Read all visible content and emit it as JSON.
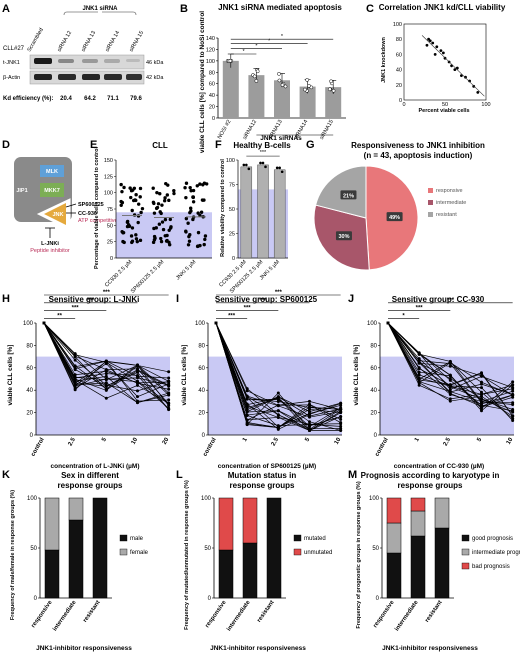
{
  "panel_letters": [
    "A",
    "B",
    "C",
    "D",
    "E",
    "F",
    "G",
    "H",
    "I",
    "J",
    "K",
    "L",
    "M"
  ],
  "A": {
    "group_label": "JNK1 siRNA",
    "cll_label": "CLL#27",
    "lanes": [
      "Scrambled",
      "siRNA 12",
      "siRNA 13",
      "siRNA 14",
      "siRNA 15"
    ],
    "bands": [
      "t-JNK1",
      "β-Actin"
    ],
    "sizes": [
      "46 kDa",
      "42 kDa"
    ],
    "kd_label": "Kd efficiency (%):",
    "kd_values": [
      "20.4",
      "64.2",
      "71.1",
      "79.6"
    ]
  },
  "B": {
    "title": "JNK1 siRNA mediated apoptosis",
    "ylabel": "viable CLL cells [%] compared to NoSi control",
    "xlabel": "JNK1 siRNAs",
    "sig": "*",
    "yticks": [
      "0",
      "20",
      "40",
      "60",
      "80",
      "100",
      "120",
      "140"
    ]
  },
  "C": {
    "title": "Correlation JNK1 kd/CLL viability",
    "xlabel": "Percent viable cells",
    "ylabel": "JNK1 knockdown",
    "xticks": [
      "0",
      "50",
      "100"
    ],
    "yticks": [
      "0",
      "20",
      "40",
      "60",
      "80",
      "100"
    ]
  },
  "D": {
    "nodes": [
      "MLK",
      "MKK7",
      "JNK",
      "JIP1"
    ],
    "inhibitors": [
      "SP600125",
      "CC-930"
    ],
    "atp_label": "ATP competitive inhibitors",
    "peptide": "L-JNKi",
    "peptide_label": "Peptide inhibitor"
  },
  "E": {
    "title": "CLL",
    "ylabel": "Percentage of viable cells compared to control",
    "yticks": [
      "0",
      "25",
      "50",
      "75",
      "100",
      "125",
      "150"
    ]
  },
  "F": {
    "title": "Healthy B-cells",
    "ylabel": "Relative viability compared to control",
    "sig": "***",
    "yticks": [
      "0",
      "25",
      "50",
      "75",
      "100"
    ]
  },
  "G": {
    "title_line1": "Responsiveness to JNK1 inhibition",
    "title_line2": "(n = 43, apoptosis induction)"
  },
  "H": {
    "title": "Sensitive group: L-JNKi",
    "xlabel": "concentration of L-JNKi (µM)"
  },
  "I": {
    "title": "Sensitive group: SP600125",
    "xlabel": "concentration of SP600125 (µM)"
  },
  "J": {
    "title": "Sensitive group: CC-930",
    "xlabel": "concentration of CC-930 (µM)"
  },
  "dose_common": {
    "ylabel": "viable CLL cells [%]",
    "yticks": [
      "0",
      "20",
      "40",
      "60",
      "80",
      "100"
    ]
  },
  "K": {
    "title_line1": "Sex in different",
    "title_line2": "response groups",
    "ylabel": "Frequency of male/female in response groups (%)"
  },
  "L": {
    "title_line1": "Mutation status in",
    "title_line2": "response groups",
    "ylabel": "Frequency of mutated/unmutated in response groups (%)"
  },
  "M": {
    "title_line1": "Prognosis according to karyotype in",
    "title_line2": "response groups",
    "ylabel": "Frequency of prognostic groups in response groups (%)"
  },
  "bottom_common": {
    "xlabel": "JNK1-inhibitor responsiveness",
    "yticks": [
      "0",
      "50",
      "100"
    ]
  },
  "chart_data": [
    {
      "panel": "B",
      "type": "bar",
      "categories": [
        "NOSI #2",
        "siRNA12",
        "siRNA13",
        "siRNA14",
        "siRNA15"
      ],
      "values": [
        100,
        75,
        66,
        55,
        54
      ],
      "title": "JNK1 siRNA mediated apoptosis",
      "xlabel": "JNK1 siRNAs",
      "ylabel": "viable CLL cells [%] compared to NoSi control",
      "ylim": [
        0,
        140
      ]
    },
    {
      "panel": "C",
      "type": "scatter",
      "x": [
        30,
        35,
        40,
        28,
        45,
        50,
        38,
        55,
        62,
        70,
        58,
        75,
        80,
        85,
        90,
        32,
        48,
        65
      ],
      "y": [
        80,
        75,
        70,
        72,
        65,
        55,
        60,
        50,
        40,
        32,
        45,
        30,
        25,
        18,
        10,
        78,
        62,
        42
      ],
      "title": "Correlation JNK1 kd/CLL viability",
      "xlabel": "Percent viable cells",
      "ylabel": "JNK1 knockdown",
      "xlim": [
        0,
        100
      ],
      "ylim": [
        0,
        100
      ]
    },
    {
      "panel": "E",
      "type": "scatter",
      "categories": [
        "CC930 2.5 µM",
        "SP600125 2.5 µM",
        "JNKi 5 µM"
      ],
      "means": [
        65,
        62,
        63
      ],
      "title": "CLL",
      "ylabel": "Percentage of viable cells compared to control",
      "ylim": [
        0,
        150
      ]
    },
    {
      "panel": "F",
      "type": "bar",
      "categories": [
        "CC930 2.5 µM",
        "SP600125 2.5 µM",
        "JNKi 5 µM"
      ],
      "values": [
        93,
        95,
        90
      ],
      "title": "Healthy B-cells",
      "ylabel": "Relative viability compared to control",
      "ylim": [
        0,
        100
      ]
    },
    {
      "panel": "G",
      "type": "pie",
      "categories": [
        "responsive",
        "intermediate",
        "resistant"
      ],
      "values": [
        49,
        30,
        21
      ],
      "labels": [
        "49%",
        "30%",
        "21%"
      ],
      "colors": [
        "#e8777a",
        "#a8566a",
        "#a5a5a5"
      ],
      "legend": "right"
    },
    {
      "panel": "H",
      "type": "line",
      "categories": [
        "control",
        "2.5",
        "5",
        "10",
        "20"
      ],
      "xlabel": "concentration of L-JNKi (µM)",
      "ylabel": "viable CLL cells [%]",
      "ylim": [
        0,
        100
      ],
      "sig": [
        "**",
        "***",
        "***",
        "***"
      ]
    },
    {
      "panel": "I",
      "type": "line",
      "categories": [
        "control",
        "1",
        "2.5",
        "5",
        "10"
      ],
      "xlabel": "concentration of SP600125 (µM)",
      "ylabel": "viable CLL cells [%]",
      "ylim": [
        0,
        100
      ],
      "sig": [
        "***",
        "***",
        "***",
        "***"
      ]
    },
    {
      "panel": "J",
      "type": "line",
      "categories": [
        "control",
        "1",
        "2.5",
        "5",
        "10"
      ],
      "xlabel": "concentration of CC-930 (µM)",
      "ylabel": "viable CLL cells [%]",
      "ylim": [
        0,
        100
      ],
      "sig": [
        "*",
        "***",
        "***"
      ]
    },
    {
      "panel": "K",
      "type": "bar",
      "categories": [
        "responsive",
        "intermediate",
        "resistant"
      ],
      "series": [
        {
          "name": "male",
          "values": [
            48,
            78,
            100
          ],
          "color": "#111111"
        },
        {
          "name": "female",
          "values": [
            52,
            22,
            0
          ],
          "color": "#a9a9a9"
        }
      ],
      "ylim": [
        0,
        100
      ],
      "legend": "right"
    },
    {
      "panel": "L",
      "type": "bar",
      "categories": [
        "responsive",
        "intermediate",
        "resistant"
      ],
      "series": [
        {
          "name": "mutated",
          "values": [
            48,
            55,
            100
          ],
          "color": "#111111"
        },
        {
          "name": "unmutated",
          "values": [
            52,
            45,
            0
          ],
          "color": "#e04a4a"
        }
      ],
      "ylim": [
        0,
        100
      ],
      "legend": "right"
    },
    {
      "panel": "M",
      "type": "bar",
      "categories": [
        "responsive",
        "intermediate",
        "resistant"
      ],
      "series": [
        {
          "name": "good prognosis",
          "values": [
            45,
            62,
            70
          ],
          "color": "#111111"
        },
        {
          "name": "intermediate prognosis",
          "values": [
            30,
            25,
            30
          ],
          "color": "#a9a9a9"
        },
        {
          "name": "bad prognosis",
          "values": [
            25,
            13,
            0
          ],
          "color": "#e04a4a"
        }
      ],
      "ylim": [
        0,
        100
      ],
      "legend": "right"
    }
  ]
}
